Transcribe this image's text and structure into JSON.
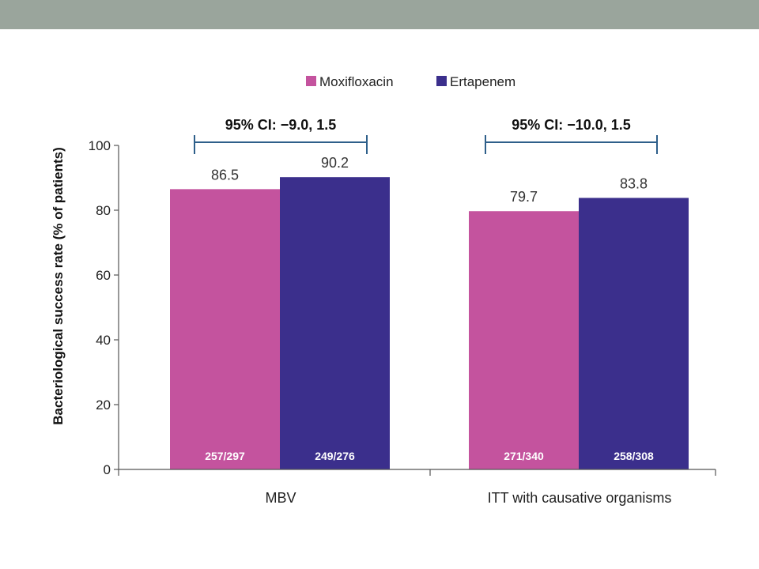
{
  "colors": {
    "band": "#9aa59c",
    "moxifloxacin": "#c4539e",
    "ertapenem": "#3b2f8c",
    "ci_bracket": "#2e5f8a",
    "axis": "#555555"
  },
  "chart_data": {
    "type": "bar",
    "ylabel": "Bacteriological success rate (% of patients)",
    "xlabel": "",
    "ylim": [
      0,
      100
    ],
    "yticks": [
      0,
      20,
      40,
      60,
      80,
      100
    ],
    "legend_position": "top-center",
    "grid": false,
    "categories": [
      "MBV",
      "ITT with causative organisms"
    ],
    "series": [
      {
        "name": "Moxifloxacin",
        "values": [
          86.5,
          79.7
        ],
        "labels": [
          "86.5",
          "79.7"
        ],
        "counts": [
          "257/297",
          "271/340"
        ]
      },
      {
        "name": "Ertapenem",
        "values": [
          90.2,
          83.8
        ],
        "labels": [
          "90.2",
          "83.8"
        ],
        "counts": [
          "249/276",
          "258/308"
        ]
      }
    ],
    "annotations": [
      "95% CI: −9.0, 1.5",
      "95% CI: −10.0, 1.5"
    ]
  }
}
